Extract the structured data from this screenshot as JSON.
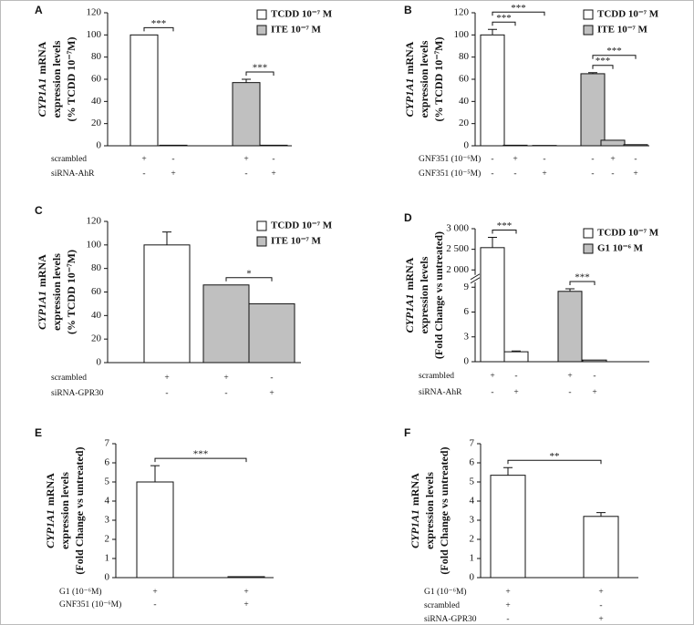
{
  "chart_data": [
    {
      "type": "bar",
      "panel": "A",
      "gene": "CYP1A1",
      "ylabel": [
        "mRNA",
        "expression levels",
        "(% TCDD 10⁻⁷M)"
      ],
      "ylim": [
        0,
        120
      ],
      "yticks": [
        0,
        20,
        40,
        60,
        80,
        100,
        120
      ],
      "series": [
        {
          "name": "TCDD 10⁻⁷ M",
          "color": "#ffffff",
          "values": [
            100,
            0.5
          ],
          "errors": [
            null,
            null
          ]
        },
        {
          "name": "ITE 10⁻⁷ M",
          "color": "#c0c0c0",
          "values": [
            57,
            0.5
          ],
          "errors": [
            3,
            null
          ]
        }
      ],
      "conditions": [
        {
          "label": "scrambled",
          "marks": [
            "+",
            "-",
            "+",
            "-"
          ]
        },
        {
          "label": "siRNA-AhR",
          "marks": [
            "-",
            "+",
            "-",
            "+"
          ]
        }
      ],
      "annotations": [
        {
          "text": "***",
          "bars": [
            0,
            1
          ]
        },
        {
          "text": "***",
          "bars": [
            2,
            3
          ]
        }
      ]
    },
    {
      "type": "bar",
      "panel": "B",
      "gene": "CYP1A1",
      "ylabel": [
        "mRNA",
        "expression levels",
        "(% TCDD 10⁻⁷M)"
      ],
      "ylim": [
        0,
        120
      ],
      "yticks": [
        0,
        20,
        40,
        60,
        80,
        100,
        120
      ],
      "series": [
        {
          "name": "TCDD 10⁻⁷ M",
          "color": "#ffffff",
          "values": [
            100,
            0.5,
            0.3
          ],
          "errors": [
            5,
            null,
            null
          ]
        },
        {
          "name": "ITE 10⁻⁷ M",
          "color": "#c0c0c0",
          "values": [
            65,
            5,
            1
          ],
          "errors": [
            1,
            null,
            null
          ]
        }
      ],
      "conditions": [
        {
          "label": "GNF351 (10⁻⁶M)",
          "marks": [
            "-",
            "+",
            "-",
            "-",
            "+",
            "-"
          ]
        },
        {
          "label": "GNF351 (10⁻⁵M)",
          "marks": [
            "-",
            "-",
            "+",
            "-",
            "-",
            "+"
          ]
        }
      ],
      "annotations": [
        {
          "text": "***",
          "bars": [
            0,
            1
          ]
        },
        {
          "text": "***",
          "bars": [
            0,
            2
          ]
        },
        {
          "text": "***",
          "bars": [
            3,
            4
          ]
        },
        {
          "text": "***",
          "bars": [
            3,
            5
          ]
        }
      ]
    },
    {
      "type": "bar",
      "panel": "C",
      "gene": "CYP1A1",
      "ylabel": [
        "mRNA",
        "expression levels",
        "(% TCDD 10⁻⁷M)"
      ],
      "ylim": [
        0,
        120
      ],
      "yticks": [
        0,
        20,
        40,
        60,
        80,
        100,
        120
      ],
      "series": [
        {
          "name": "TCDD 10⁻⁷ M",
          "color": "#ffffff",
          "values": [
            100
          ],
          "errors": [
            11
          ]
        },
        {
          "name": "ITE 10⁻⁷ M",
          "color": "#c0c0c0",
          "values": [
            66,
            50
          ],
          "errors": [
            null,
            null
          ]
        }
      ],
      "conditions": [
        {
          "label": "scrambled",
          "marks": [
            "+",
            "+",
            "-"
          ]
        },
        {
          "label": "siRNA-GPR30",
          "marks": [
            "-",
            "-",
            "+"
          ]
        }
      ],
      "annotations": [
        {
          "text": "*",
          "bars": [
            1,
            2
          ]
        }
      ]
    },
    {
      "type": "bar",
      "panel": "D",
      "gene": "CYP1A1",
      "ylabel": [
        "mRNA",
        "expression levels",
        "(Fold Change vs untreated)"
      ],
      "ylim": [
        0,
        3000
      ],
      "axis_break": [
        9,
        2000
      ],
      "yticks": [
        0,
        3,
        6,
        9,
        {
          "value": 2000,
          "label": "2 000"
        },
        {
          "value": 2500,
          "label": "2 500"
        },
        {
          "value": 3000,
          "label": "3 000"
        }
      ],
      "series": [
        {
          "name": "TCDD 10⁻⁷ M",
          "color": "#ffffff",
          "values": [
            2540,
            1.2
          ],
          "errors": [
            250,
            0.1
          ]
        },
        {
          "name": "G1 10⁻⁶ M",
          "color": "#c0c0c0",
          "values": [
            8.5,
            0.2
          ],
          "errors": [
            0.3,
            null
          ]
        }
      ],
      "conditions": [
        {
          "label": "scrambled",
          "marks": [
            "+",
            "-",
            "+",
            "-"
          ]
        },
        {
          "label": "siRNA-AhR",
          "marks": [
            "-",
            "+",
            "-",
            "+"
          ]
        }
      ],
      "annotations": [
        {
          "text": "***",
          "bars": [
            0,
            1
          ]
        },
        {
          "text": "***",
          "bars": [
            2,
            3
          ]
        }
      ]
    },
    {
      "type": "bar",
      "panel": "E",
      "gene": "CYP1A1",
      "ylabel": [
        "mRNA",
        "expression levels",
        "(Fold Change vs untreated)"
      ],
      "ylim": [
        0,
        7
      ],
      "yticks": [
        0,
        1,
        2,
        3,
        4,
        5,
        6,
        7
      ],
      "series": [
        {
          "color": "#ffffff",
          "values": [
            5,
            0.05
          ],
          "errors": [
            0.85,
            null
          ]
        }
      ],
      "conditions": [
        {
          "label": "G1 (10⁻⁶M)",
          "marks": [
            "+",
            "+"
          ]
        },
        {
          "label": "GNF351 (10⁻⁶M)",
          "marks": [
            "-",
            "+"
          ]
        }
      ],
      "annotations": [
        {
          "text": "***",
          "bars": [
            0,
            1
          ]
        }
      ]
    },
    {
      "type": "bar",
      "panel": "F",
      "gene": "CYP1A1",
      "ylabel": [
        "mRNA",
        "expression levels",
        "(Fold Change vs untreated)"
      ],
      "ylim": [
        0,
        7
      ],
      "yticks": [
        0,
        1,
        2,
        3,
        4,
        5,
        6,
        7
      ],
      "series": [
        {
          "color": "#ffffff",
          "values": [
            5.35,
            3.2
          ],
          "errors": [
            0.4,
            0.2
          ]
        }
      ],
      "conditions": [
        {
          "label": "G1 (10⁻⁶M)",
          "marks": [
            "+",
            "+"
          ]
        },
        {
          "label": "scrambled",
          "marks": [
            "+",
            "-"
          ]
        },
        {
          "label": "siRNA-GPR30",
          "marks": [
            "-",
            "+"
          ]
        }
      ],
      "annotations": [
        {
          "text": "**",
          "bars": [
            0,
            1
          ]
        }
      ]
    }
  ]
}
